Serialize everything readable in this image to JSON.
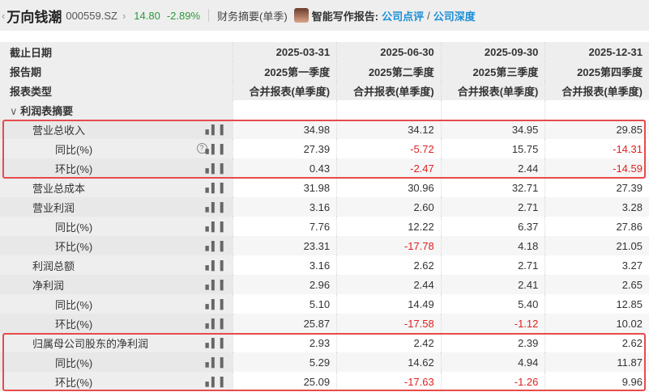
{
  "header": {
    "stock_name": "万向钱潮",
    "stock_code": "000559.SZ",
    "price": "14.80",
    "change_pct": "-2.89%",
    "page_title": "财务摘要(单季)",
    "ai_label": "智能写作报告:",
    "link1": "公司点评",
    "link2": "公司深度"
  },
  "table": {
    "header_rows": [
      {
        "label": "截止日期",
        "values": [
          "2025-03-31",
          "2025-06-30",
          "2025-09-30",
          "2025-12-31"
        ]
      },
      {
        "label": "报告期",
        "values": [
          "2025第一季度",
          "2025第二季度",
          "2025第三季度",
          "2025第四季度"
        ]
      },
      {
        "label": "报表类型",
        "values": [
          "合并报表(单季度)",
          "合并报表(单季度)",
          "合并报表(单季度)",
          "合并报表(单季度)"
        ]
      }
    ],
    "section": "利润表摘要",
    "rows": [
      {
        "label": "营业总收入",
        "level": 1,
        "values": [
          "34.98",
          "34.12",
          "34.95",
          "29.85"
        ]
      },
      {
        "label": "同比(%)",
        "level": 2,
        "help": true,
        "values": [
          "27.39",
          "-5.72",
          "15.75",
          "-14.31"
        ]
      },
      {
        "label": "环比(%)",
        "level": 2,
        "values": [
          "0.43",
          "-2.47",
          "2.44",
          "-14.59"
        ]
      },
      {
        "label": "营业总成本",
        "level": 1,
        "values": [
          "31.98",
          "30.96",
          "32.71",
          "27.39"
        ]
      },
      {
        "label": "营业利润",
        "level": 1,
        "values": [
          "3.16",
          "2.60",
          "2.71",
          "3.28"
        ]
      },
      {
        "label": "同比(%)",
        "level": 2,
        "values": [
          "7.76",
          "12.22",
          "6.37",
          "27.86"
        ]
      },
      {
        "label": "环比(%)",
        "level": 2,
        "values": [
          "23.31",
          "-17.78",
          "4.18",
          "21.05"
        ]
      },
      {
        "label": "利润总额",
        "level": 1,
        "values": [
          "3.16",
          "2.62",
          "2.71",
          "3.27"
        ]
      },
      {
        "label": "净利润",
        "level": 1,
        "values": [
          "2.96",
          "2.44",
          "2.41",
          "2.65"
        ]
      },
      {
        "label": "同比(%)",
        "level": 2,
        "values": [
          "5.10",
          "14.49",
          "5.40",
          "12.85"
        ]
      },
      {
        "label": "环比(%)",
        "level": 2,
        "values": [
          "25.87",
          "-17.58",
          "-1.12",
          "10.02"
        ]
      },
      {
        "label": "归属母公司股东的净利润",
        "level": 1,
        "values": [
          "2.93",
          "2.42",
          "2.39",
          "2.62"
        ]
      },
      {
        "label": "同比(%)",
        "level": 2,
        "values": [
          "5.29",
          "14.62",
          "4.94",
          "11.87"
        ]
      },
      {
        "label": "环比(%)",
        "level": 2,
        "values": [
          "25.09",
          "-17.63",
          "-1.26",
          "9.96"
        ]
      }
    ]
  },
  "colors": {
    "positive": "#2a9a3a",
    "negative": "#e02020",
    "link": "#1b8fd6",
    "highlight_box": "#e84a4a"
  }
}
